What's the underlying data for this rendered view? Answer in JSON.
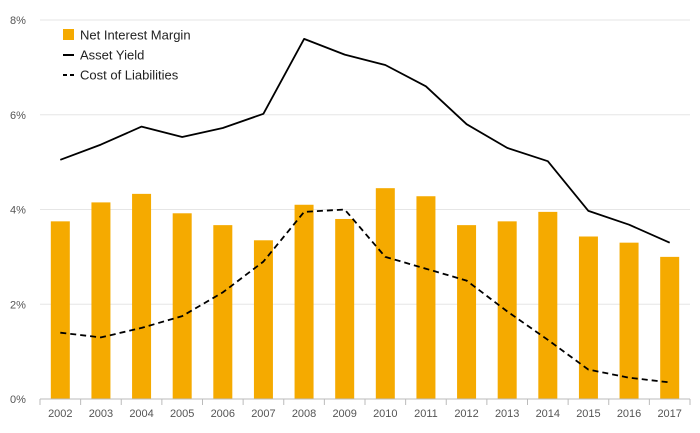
{
  "colors": {
    "bar": "#F5AA00",
    "line": "#000000",
    "grid": "#e6e6e6",
    "axis": "#bbbbbb"
  },
  "chart_data": {
    "type": "bar",
    "title": "",
    "xlabel": "",
    "ylabel": "",
    "categories": [
      "2002",
      "2003",
      "2004",
      "2005",
      "2006",
      "2007",
      "2008",
      "2009",
      "2010",
      "2011",
      "2012",
      "2013",
      "2014",
      "2015",
      "2016",
      "2017"
    ],
    "ylim": [
      0,
      8
    ],
    "yticks": [
      0,
      2,
      4,
      6,
      8
    ],
    "ytick_labels": [
      "0%",
      "2%",
      "4%",
      "6%",
      "8%"
    ],
    "grid": true,
    "legend_position": "top-left",
    "series": [
      {
        "name": "Net Interest Margin",
        "kind": "bar",
        "values": [
          3.75,
          4.15,
          4.33,
          3.92,
          3.67,
          3.35,
          4.1,
          3.8,
          4.45,
          4.28,
          3.67,
          3.75,
          3.95,
          3.43,
          3.3,
          3.0
        ]
      },
      {
        "name": "Asset Yield",
        "kind": "line",
        "style": "solid",
        "values": [
          5.05,
          5.37,
          5.75,
          5.53,
          5.72,
          6.02,
          7.6,
          7.27,
          7.05,
          6.6,
          5.8,
          5.3,
          5.02,
          3.97,
          3.68,
          3.3
        ]
      },
      {
        "name": "Cost of Liabilities",
        "kind": "line",
        "style": "dashed",
        "values": [
          1.4,
          1.3,
          1.5,
          1.75,
          2.25,
          2.9,
          3.95,
          4.0,
          3.0,
          2.75,
          2.5,
          1.85,
          1.25,
          0.62,
          0.45,
          0.35
        ]
      }
    ]
  }
}
